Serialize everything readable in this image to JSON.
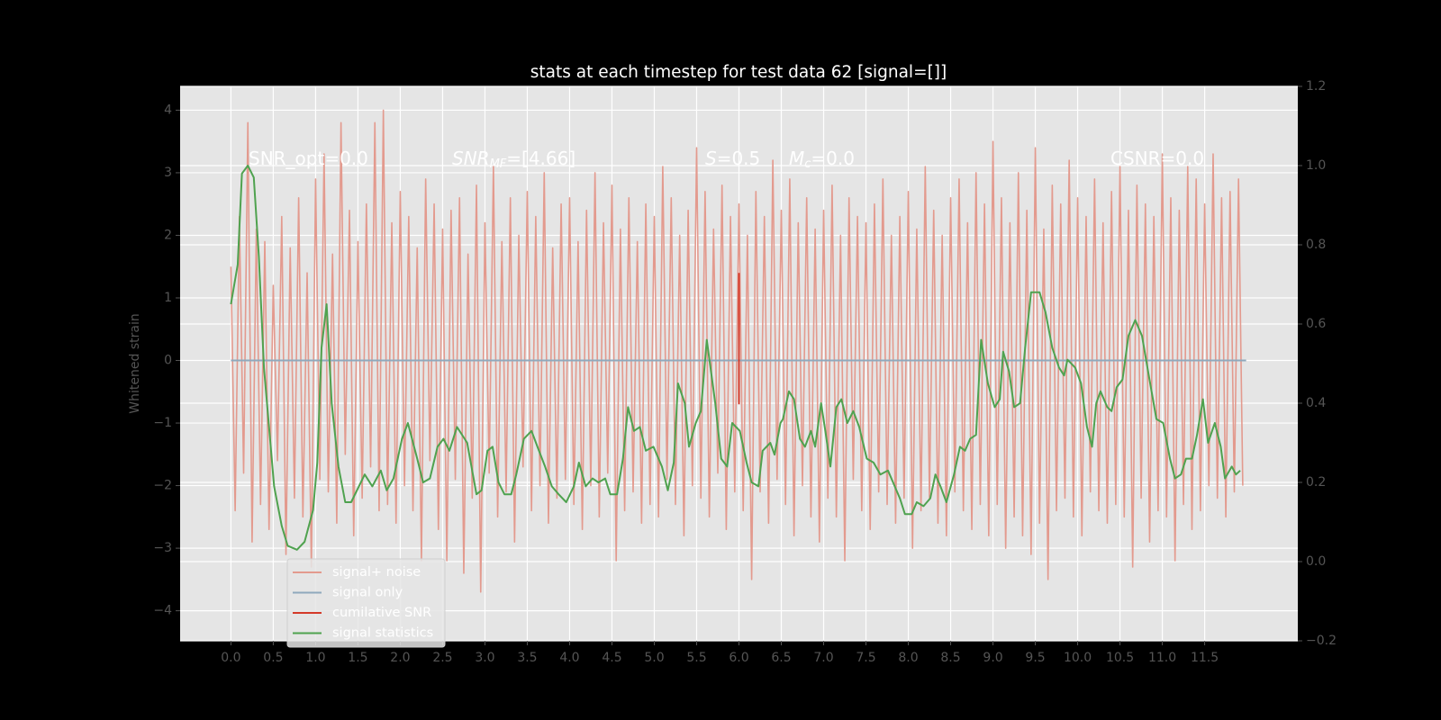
{
  "chart_data": {
    "type": "line",
    "title": "stats at each timestep for test data 62 [signal=[]]",
    "ylabel": "Whitened strain",
    "annotations": [
      [
        "SNR_opt=0.0"
      ],
      [
        "SNR",
        "MF",
        "=[4.66]"
      ],
      [
        "S",
        "=0.5"
      ],
      [
        "M",
        "c",
        "=0.0"
      ],
      [
        "CSNR=0.0"
      ]
    ],
    "xlim": [
      -0.6,
      12.6
    ],
    "ylim": [
      -4.48,
      4.38
    ],
    "y2lim": [
      -0.2,
      1.2
    ],
    "xticks": [
      {
        "value": 0,
        "label": "0.0"
      },
      {
        "value": 0.5,
        "label": "0.5"
      },
      {
        "value": 1,
        "label": "1.0"
      },
      {
        "value": 1.5,
        "label": "1.5"
      },
      {
        "value": 2,
        "label": "2.0"
      },
      {
        "value": 2.5,
        "label": "2.5"
      },
      {
        "value": 3,
        "label": "3.0"
      },
      {
        "value": 3.5,
        "label": "3.5"
      },
      {
        "value": 4,
        "label": "4.0"
      },
      {
        "value": 4.5,
        "label": "4.5"
      },
      {
        "value": 5,
        "label": "5.0"
      },
      {
        "value": 5.5,
        "label": "5.5"
      },
      {
        "value": 6,
        "label": "6.0"
      },
      {
        "value": 6.5,
        "label": "6.5"
      },
      {
        "value": 7,
        "label": "7.0"
      },
      {
        "value": 7.5,
        "label": "7.5"
      },
      {
        "value": 8,
        "label": "8.0"
      },
      {
        "value": 8.5,
        "label": "8.5"
      },
      {
        "value": 9,
        "label": "9.0"
      },
      {
        "value": 9.5,
        "label": "9.5"
      },
      {
        "value": 10,
        "label": "10.0"
      },
      {
        "value": 10.5,
        "label": "10.5"
      },
      {
        "value": 11,
        "label": "11.0"
      },
      {
        "value": 11.5,
        "label": "11.5"
      }
    ],
    "yticks": [
      {
        "value": -4,
        "label": "−4"
      },
      {
        "value": -3,
        "label": "−3"
      },
      {
        "value": -2,
        "label": "−2"
      },
      {
        "value": -1,
        "label": "−1"
      },
      0,
      1,
      2,
      3,
      4
    ],
    "y2ticks": [
      {
        "value": -0.2,
        "label": "−0.2"
      },
      {
        "value": 0,
        "label": "0.0"
      },
      0.2,
      0.4,
      0.6,
      0.8,
      {
        "value": 1,
        "label": "1.0"
      },
      1.2
    ],
    "grid": true,
    "legend": "lower left",
    "series": [
      {
        "name": "signal+ noise",
        "color": "#e39a8e",
        "x": [
          0,
          0.05,
          0.1,
          0.15,
          0.2,
          0.25,
          0.3,
          0.35,
          0.4,
          0.45,
          0.5,
          0.55,
          0.6,
          0.65,
          0.7,
          0.75,
          0.8,
          0.85,
          0.9,
          0.95,
          1,
          1.05,
          1.1,
          1.15,
          1.2,
          1.25,
          1.3,
          1.35,
          1.4,
          1.45,
          1.5,
          1.55,
          1.6,
          1.65,
          1.7,
          1.75,
          1.8,
          1.85,
          1.9,
          1.95,
          2,
          2.05,
          2.1,
          2.15,
          2.2,
          2.25,
          2.3,
          2.35,
          2.4,
          2.45,
          2.5,
          2.55,
          2.6,
          2.65,
          2.7,
          2.75,
          2.8,
          2.85,
          2.9,
          2.95,
          3,
          3.05,
          3.1,
          3.15,
          3.2,
          3.25,
          3.3,
          3.35,
          3.4,
          3.45,
          3.5,
          3.55,
          3.6,
          3.65,
          3.7,
          3.75,
          3.8,
          3.85,
          3.9,
          3.95,
          4,
          4.05,
          4.1,
          4.15,
          4.2,
          4.25,
          4.3,
          4.35,
          4.4,
          4.45,
          4.5,
          4.55,
          4.6,
          4.65,
          4.7,
          4.75,
          4.8,
          4.85,
          4.9,
          4.95,
          5,
          5.05,
          5.1,
          5.15,
          5.2,
          5.25,
          5.3,
          5.35,
          5.4,
          5.45,
          5.5,
          5.55,
          5.6,
          5.65,
          5.7,
          5.75,
          5.8,
          5.85,
          5.9,
          5.95,
          6,
          6.05,
          6.1,
          6.15,
          6.2,
          6.25,
          6.3,
          6.35,
          6.4,
          6.45,
          6.5,
          6.55,
          6.6,
          6.65,
          6.7,
          6.75,
          6.8,
          6.85,
          6.9,
          6.95,
          7,
          7.05,
          7.1,
          7.15,
          7.2,
          7.25,
          7.3,
          7.35,
          7.4,
          7.45,
          7.5,
          7.55,
          7.6,
          7.65,
          7.7,
          7.75,
          7.8,
          7.85,
          7.9,
          7.95,
          8,
          8.05,
          8.1,
          8.15,
          8.2,
          8.25,
          8.3,
          8.35,
          8.4,
          8.45,
          8.5,
          8.55,
          8.6,
          8.65,
          8.7,
          8.75,
          8.8,
          8.85,
          8.9,
          8.95,
          9,
          9.05,
          9.1,
          9.15,
          9.2,
          9.25,
          9.3,
          9.35,
          9.4,
          9.45,
          9.5,
          9.55,
          9.6,
          9.65,
          9.7,
          9.75,
          9.8,
          9.85,
          9.9,
          9.95,
          10,
          10.05,
          10.1,
          10.15,
          10.2,
          10.25,
          10.3,
          10.35,
          10.4,
          10.45,
          10.5,
          10.55,
          10.6,
          10.65,
          10.7,
          10.75,
          10.8,
          10.85,
          10.9,
          10.95,
          11,
          11.05,
          11.1,
          11.15,
          11.2,
          11.25,
          11.3,
          11.35,
          11.4,
          11.45,
          11.5,
          11.55,
          11.6,
          11.65,
          11.7,
          11.75,
          11.8,
          11.85,
          11.9,
          11.95
        ],
        "values": [
          1.5,
          -2.4,
          2.3,
          -1.8,
          3.8,
          -2.9,
          2.1,
          -2.3,
          1.9,
          -2.7,
          1.2,
          -1.6,
          2.3,
          -3.1,
          1.8,
          -2.2,
          2.6,
          -2.5,
          1.4,
          -3.3,
          2.9,
          -1.9,
          3.3,
          -2.1,
          1.7,
          -2.6,
          3.8,
          -1.5,
          2.4,
          -2.8,
          1.9,
          -2.2,
          2.5,
          -1.7,
          3.8,
          -2.4,
          4.0,
          -2.3,
          2.2,
          -2.6,
          2.7,
          -2.0,
          2.3,
          -2.4,
          1.8,
          -3.2,
          2.9,
          -1.6,
          2.5,
          -2.7,
          2.1,
          -3.2,
          2.4,
          -1.9,
          2.6,
          -3.4,
          1.7,
          -2.2,
          2.8,
          -3.7,
          2.2,
          -1.8,
          3.1,
          -2.5,
          1.9,
          -2.1,
          2.6,
          -2.9,
          2.0,
          -1.7,
          2.7,
          -2.4,
          2.3,
          -2.0,
          3.0,
          -2.6,
          1.8,
          -2.2,
          2.5,
          -1.9,
          2.6,
          -2.3,
          1.9,
          -2.7,
          2.4,
          -2.0,
          3.0,
          -2.5,
          2.2,
          -1.8,
          2.8,
          -3.2,
          2.1,
          -2.4,
          2.6,
          -2.1,
          1.9,
          -2.6,
          2.5,
          -2.3,
          2.3,
          -2.5,
          3.1,
          -1.9,
          2.6,
          -2.3,
          2.0,
          -2.8,
          2.4,
          -2.0,
          3.4,
          -2.2,
          2.7,
          -2.5,
          2.1,
          -1.8,
          2.8,
          -2.7,
          2.3,
          -2.1,
          2.5,
          -2.4,
          2.0,
          -3.5,
          2.7,
          -2.1,
          2.3,
          -2.6,
          3.2,
          -1.9,
          2.4,
          -2.3,
          2.9,
          -2.8,
          2.2,
          -2.0,
          2.6,
          -2.5,
          2.1,
          -2.9,
          2.4,
          -2.2,
          2.8,
          -2.5,
          2.0,
          -3.2,
          2.6,
          -1.9,
          2.3,
          -2.4,
          2.2,
          -2.7,
          2.5,
          -2.1,
          2.9,
          -2.3,
          2.0,
          -2.6,
          2.3,
          -2.2,
          2.7,
          -3.0,
          2.1,
          -2.4,
          3.1,
          -2.2,
          2.4,
          -2.6,
          2.0,
          -2.8,
          2.6,
          -2.1,
          2.9,
          -2.4,
          2.2,
          -2.7,
          3.0,
          -2.3,
          2.5,
          -2.8,
          3.5,
          -2.3,
          2.6,
          -3.0,
          2.2,
          -2.5,
          3.0,
          -2.8,
          2.4,
          -3.1,
          3.4,
          -2.6,
          2.1,
          -3.5,
          2.8,
          -2.4,
          2.5,
          -2.2,
          3.2,
          -2.5,
          2.6,
          -2.8,
          2.3,
          -2.1,
          2.9,
          -2.4,
          2.2,
          -2.6,
          2.7,
          -2.3,
          3.1,
          -2.5,
          2.4,
          -3.3,
          2.8,
          -2.2,
          2.5,
          -2.9,
          2.3,
          -2.4,
          3.3,
          -2.5,
          2.6,
          -3.2,
          2.4,
          -2.3,
          3.1,
          -2.7,
          2.9,
          -2.4,
          2.5,
          -2.0,
          3.3,
          -2.2,
          2.6,
          -2.5,
          2.7,
          -2.1,
          2.9,
          -2.0
        ]
      },
      {
        "name": "signal only",
        "color": "#8fa9bd",
        "x": [
          0,
          11.99
        ],
        "values": [
          0,
          0
        ]
      },
      {
        "name": "cumilative SNR",
        "color": "#d43a2a",
        "x": [
          6.0,
          6.0
        ],
        "values": [
          1.4,
          -0.7
        ]
      },
      {
        "name": "signal statistics",
        "color": "#4fa24f",
        "axis": "y2",
        "x": [
          0,
          0.08,
          0.13,
          0.2,
          0.27,
          0.33,
          0.39,
          0.51,
          0.6,
          0.67,
          0.78,
          0.87,
          0.97,
          1.02,
          1.07,
          1.13,
          1.19,
          1.27,
          1.35,
          1.42,
          1.58,
          1.67,
          1.77,
          1.84,
          1.92,
          2.02,
          2.09,
          2.2,
          2.27,
          2.35,
          2.44,
          2.51,
          2.58,
          2.67,
          2.79,
          2.9,
          2.96,
          3.03,
          3.09,
          3.16,
          3.23,
          3.31,
          3.37,
          3.46,
          3.55,
          3.62,
          3.71,
          3.79,
          3.87,
          3.96,
          4.05,
          4.11,
          4.19,
          4.27,
          4.34,
          4.42,
          4.48,
          4.56,
          4.63,
          4.69,
          4.76,
          4.83,
          4.9,
          4.99,
          5.09,
          5.16,
          5.23,
          5.28,
          5.36,
          5.41,
          5.49,
          5.55,
          5.62,
          5.72,
          5.79,
          5.86,
          5.92,
          6.01,
          6.09,
          6.15,
          6.23,
          6.28,
          6.37,
          6.42,
          6.49,
          6.52,
          6.59,
          6.65,
          6.72,
          6.78,
          6.85,
          6.9,
          6.97,
          7.02,
          7.08,
          7.15,
          7.21,
          7.28,
          7.35,
          7.42,
          7.51,
          7.59,
          7.67,
          7.76,
          7.82,
          7.9,
          7.96,
          8.04,
          8.1,
          8.18,
          8.26,
          8.32,
          8.38,
          8.45,
          8.54,
          8.61,
          8.67,
          8.73,
          8.8,
          8.86,
          8.94,
          9.02,
          9.08,
          9.12,
          9.19,
          9.25,
          9.32,
          9.38,
          9.45,
          9.55,
          9.62,
          9.7,
          9.78,
          9.84,
          9.88,
          9.97,
          10.04,
          10.11,
          10.17,
          10.22,
          10.27,
          10.35,
          10.4,
          10.46,
          10.53,
          10.6,
          10.68,
          10.76,
          10.84,
          10.93,
          11.01,
          11.09,
          11.15,
          11.22,
          11.28,
          11.35,
          11.41,
          11.48,
          11.54,
          11.62,
          11.69,
          11.74,
          11.82,
          11.87,
          11.92
        ],
        "values": [
          0.65,
          0.75,
          0.98,
          1.0,
          0.97,
          0.77,
          0.49,
          0.19,
          0.09,
          0.04,
          0.03,
          0.05,
          0.13,
          0.25,
          0.54,
          0.65,
          0.4,
          0.24,
          0.15,
          0.15,
          0.22,
          0.19,
          0.23,
          0.18,
          0.21,
          0.31,
          0.35,
          0.26,
          0.2,
          0.21,
          0.29,
          0.31,
          0.28,
          0.34,
          0.3,
          0.17,
          0.18,
          0.28,
          0.29,
          0.2,
          0.17,
          0.17,
          0.22,
          0.31,
          0.33,
          0.29,
          0.24,
          0.19,
          0.17,
          0.15,
          0.19,
          0.25,
          0.19,
          0.21,
          0.2,
          0.21,
          0.17,
          0.17,
          0.26,
          0.39,
          0.33,
          0.34,
          0.28,
          0.29,
          0.24,
          0.18,
          0.25,
          0.45,
          0.4,
          0.29,
          0.35,
          0.38,
          0.56,
          0.4,
          0.26,
          0.24,
          0.35,
          0.33,
          0.25,
          0.2,
          0.19,
          0.28,
          0.3,
          0.27,
          0.35,
          0.36,
          0.43,
          0.41,
          0.31,
          0.29,
          0.33,
          0.29,
          0.4,
          0.33,
          0.24,
          0.39,
          0.41,
          0.35,
          0.38,
          0.34,
          0.26,
          0.25,
          0.22,
          0.23,
          0.2,
          0.16,
          0.12,
          0.12,
          0.15,
          0.14,
          0.16,
          0.22,
          0.19,
          0.15,
          0.22,
          0.29,
          0.28,
          0.31,
          0.32,
          0.56,
          0.45,
          0.39,
          0.41,
          0.53,
          0.48,
          0.39,
          0.4,
          0.54,
          0.68,
          0.68,
          0.63,
          0.54,
          0.49,
          0.47,
          0.51,
          0.49,
          0.45,
          0.34,
          0.29,
          0.4,
          0.43,
          0.39,
          0.38,
          0.44,
          0.46,
          0.57,
          0.61,
          0.57,
          0.47,
          0.36,
          0.35,
          0.26,
          0.21,
          0.22,
          0.26,
          0.26,
          0.32,
          0.41,
          0.3,
          0.35,
          0.29,
          0.21,
          0.24,
          0.22,
          0.23
        ]
      }
    ]
  }
}
